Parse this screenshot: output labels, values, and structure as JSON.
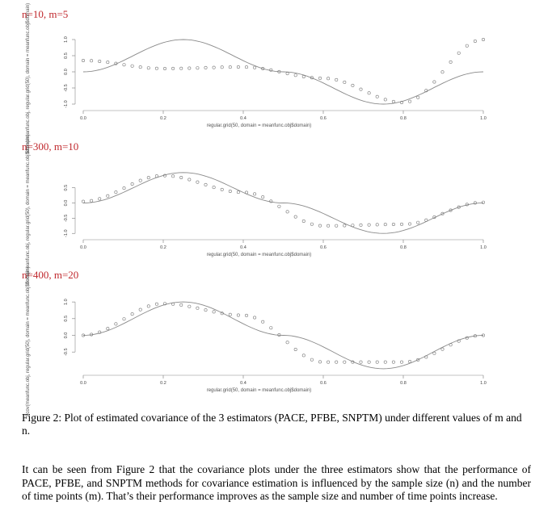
{
  "panels": [
    {
      "title": "n=10, m=5",
      "xlabel": "regular.grid(50, domain = meanfunc.obj$domain)",
      "ylabel": "Scov(meanfunc.obj, regular.grid(50), domain = meanfunc.obj$domain)",
      "xticks": [
        "0.0",
        "0.2",
        "0.4",
        "0.6",
        "0.8",
        "1.0"
      ],
      "yticks": [
        "-1.0",
        "-0.5",
        "0.0",
        "0.5",
        "1.0"
      ],
      "ylim": [
        -1.1,
        1.1
      ]
    },
    {
      "title": "n=300, m=10",
      "xlabel": "regular.grid(50, domain = meanfunc.obj$domain)",
      "ylabel": "Scov(meanfunc.obj, regular.grid(50), domain = meanfunc.obj$domain)",
      "xticks": [
        "0.0",
        "0.2",
        "0.4",
        "0.6",
        "0.8",
        "1.0"
      ],
      "yticks": [
        "-1.0",
        "-0.5",
        "0.0",
        "0.5"
      ],
      "ylim": [
        -1.1,
        1.1
      ]
    },
    {
      "title": "n=400, m=20",
      "xlabel": "regular.grid(50, domain = meanfunc.obj$domain)",
      "ylabel": "Scov(meanfunc.obj, regular.grid(50), domain = meanfunc.obj$domain)",
      "xticks": [
        "0.0",
        "0.2",
        "0.4",
        "0.6",
        "0.8",
        "1.0"
      ],
      "yticks": [
        "-0.5",
        "0.0",
        "0.5",
        "1.0"
      ],
      "ylim": [
        -1.1,
        1.1
      ]
    }
  ],
  "chart_data": [
    {
      "type": "scatter",
      "title": "n=10, m=5",
      "xlabel": "regular.grid(50, domain = meanfunc.obj$domain)",
      "ylabel": "Scov(meanfunc.obj, regular.grid(50), domain = meanfunc.obj$domain)",
      "xlim": [
        0,
        1
      ],
      "ylim": [
        -1.1,
        1.1
      ],
      "series": [
        {
          "x": [
            0,
            0.2,
            0.4,
            0.6,
            0.8,
            1
          ],
          "y": [
            0.35,
            0.1,
            0.15,
            -0.2,
            -0.95,
            1.0
          ]
        },
        {
          "x": [
            0,
            0.25,
            0.5,
            0.75,
            1
          ],
          "y": [
            0,
            1,
            0,
            -1,
            0
          ]
        }
      ]
    },
    {
      "type": "scatter",
      "title": "n=300, m=10",
      "xlabel": "regular.grid(50, domain = meanfunc.obj$domain)",
      "ylabel": "Scov(meanfunc.obj, regular.grid(50), domain = meanfunc.obj$domain)",
      "xlim": [
        0,
        1
      ],
      "ylim": [
        -1.1,
        1.1
      ],
      "series": [
        {
          "x": [
            0,
            0.2,
            0.4,
            0.6,
            0.8,
            1
          ],
          "y": [
            0.05,
            0.9,
            0.35,
            -0.75,
            -0.7,
            0.02
          ]
        },
        {
          "x": [
            0,
            0.25,
            0.5,
            0.75,
            1
          ],
          "y": [
            0,
            1,
            0,
            -1,
            0
          ]
        }
      ]
    },
    {
      "type": "scatter",
      "title": "n=400, m=20",
      "xlabel": "regular.grid(50, domain = meanfunc.obj$domain)",
      "ylabel": "Scov(meanfunc.obj, regular.grid(50), domain = meanfunc.obj$domain)",
      "xlim": [
        0,
        1
      ],
      "ylim": [
        -1.1,
        1.1
      ],
      "series": [
        {
          "x": [
            0,
            0.2,
            0.4,
            0.6,
            0.8,
            1
          ],
          "y": [
            0.0,
            0.95,
            0.6,
            -0.8,
            -0.8,
            0.0
          ]
        },
        {
          "x": [
            0,
            0.25,
            0.5,
            0.75,
            1
          ],
          "y": [
            0,
            1,
            0,
            -1,
            0
          ]
        }
      ]
    }
  ],
  "caption": "Figure 2: Plot of estimated covariance of the 3 estimators (PACE, PFBE, SNPTM) under different values of m and n.",
  "paragraph": "It can be seen from Figure 2 that the covariance plots under the three estimators show that the performance of PACE, PFBE, and SNPTM methods for covariance estimation is influenced by the sample size (n) and the number of time points (m). That’s their performance improves as the sample size and number of time points increase."
}
